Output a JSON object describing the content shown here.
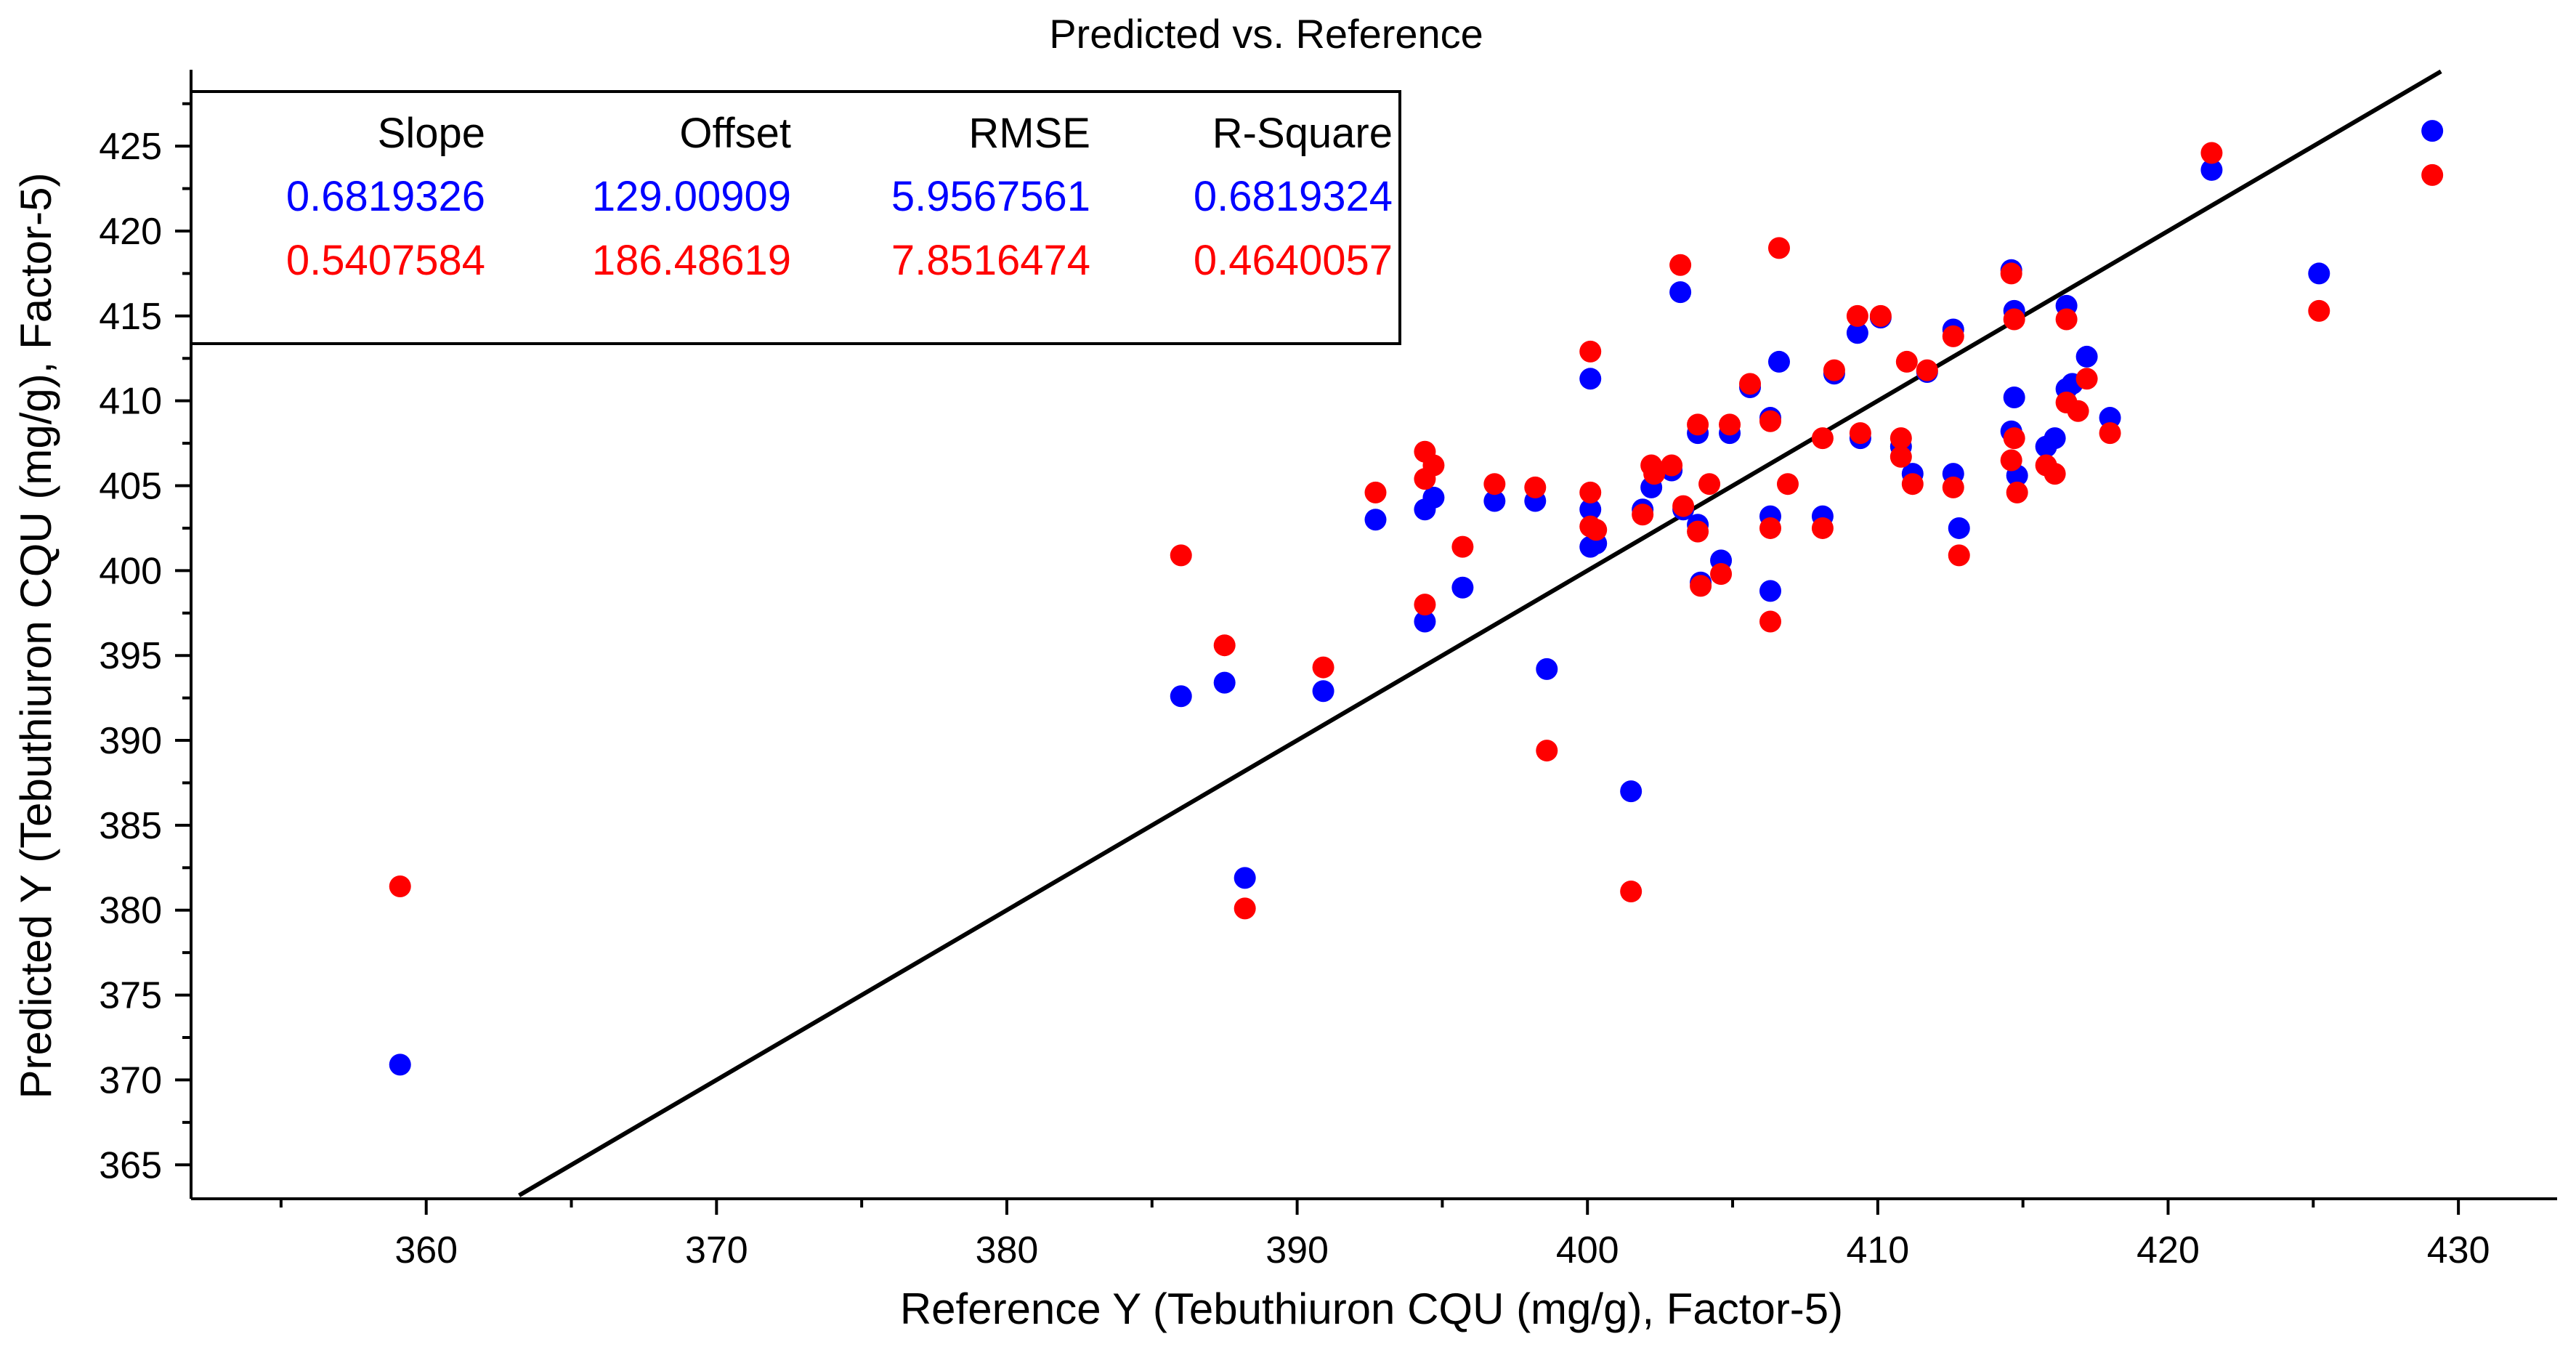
{
  "chart_data": {
    "type": "scatter",
    "title": "Predicted vs. Reference",
    "xlabel": "Reference Y (Tebuthiuron CQU (mg/g), Factor-5)",
    "ylabel": "Predicted Y (Tebuthiuron CQU (mg/g), Factor-5)",
    "xlim": [
      351.9,
      433.4
    ],
    "ylim": [
      363.0,
      429.5
    ],
    "x_ticks": [
      360,
      370,
      380,
      390,
      400,
      410,
      420,
      430
    ],
    "x_tick_labels": [
      "360",
      "370",
      "380",
      "390",
      "400",
      "410",
      "420",
      "430"
    ],
    "x_minor_ticks": [
      355,
      365,
      375,
      385,
      395,
      405,
      415,
      425
    ],
    "y_ticks": [
      365,
      370,
      375,
      380,
      385,
      390,
      395,
      400,
      405,
      410,
      415,
      420,
      425
    ],
    "y_tick_labels": [
      "365",
      "370",
      "375",
      "380",
      "385",
      "390",
      "395",
      "400",
      "405",
      "410",
      "415",
      "420",
      "425"
    ],
    "y_minor_ticks": [
      367.5,
      372.5,
      377.5,
      382.5,
      387.5,
      392.5,
      397.5,
      402.5,
      407.5,
      412.5,
      417.5,
      422.5,
      427.5
    ],
    "grid": false,
    "legend": "top-left",
    "stats": {
      "headers": [
        "Slope",
        "Offset",
        "RMSE",
        "R-Square"
      ],
      "rows": [
        {
          "name": "blue",
          "color": "#0000ff",
          "values": [
            "0.6819326",
            "129.00909",
            "5.9567561",
            "0.6819324"
          ]
        },
        {
          "name": "red",
          "color": "#ff0000",
          "values": [
            "0.5407584",
            "186.48619",
            "7.8516474",
            "0.4640057"
          ]
        }
      ]
    },
    "target_line": {
      "x": [
        363.2,
        429.4
      ],
      "y": [
        363.2,
        429.4
      ],
      "color": "#000000"
    },
    "series": [
      {
        "name": "blue",
        "color": "#0000ff",
        "points": [
          [
            359.1,
            370.9
          ],
          [
            386.0,
            392.6
          ],
          [
            387.5,
            393.4
          ],
          [
            388.2,
            381.9
          ],
          [
            390.9,
            392.9
          ],
          [
            392.7,
            403.0
          ],
          [
            394.4,
            403.6
          ],
          [
            394.4,
            397.0
          ],
          [
            394.7,
            404.3
          ],
          [
            395.7,
            399.0
          ],
          [
            396.8,
            404.1
          ],
          [
            398.2,
            404.1
          ],
          [
            398.6,
            394.2
          ],
          [
            400.1,
            411.3
          ],
          [
            400.1,
            403.6
          ],
          [
            400.1,
            401.4
          ],
          [
            400.3,
            401.6
          ],
          [
            401.5,
            387.0
          ],
          [
            401.9,
            403.6
          ],
          [
            402.2,
            404.9
          ],
          [
            402.9,
            405.9
          ],
          [
            403.2,
            416.4
          ],
          [
            403.3,
            403.6
          ],
          [
            403.8,
            408.1
          ],
          [
            403.8,
            402.7
          ],
          [
            403.9,
            399.3
          ],
          [
            404.6,
            400.6
          ],
          [
            404.9,
            408.1
          ],
          [
            405.6,
            410.8
          ],
          [
            406.3,
            409.0
          ],
          [
            406.3,
            403.2
          ],
          [
            406.3,
            398.8
          ],
          [
            406.6,
            412.3
          ],
          [
            408.1,
            403.2
          ],
          [
            408.5,
            411.6
          ],
          [
            409.3,
            414.0
          ],
          [
            409.4,
            407.8
          ],
          [
            410.1,
            414.9
          ],
          [
            410.8,
            407.3
          ],
          [
            411.2,
            405.7
          ],
          [
            411.7,
            411.7
          ],
          [
            412.6,
            414.2
          ],
          [
            412.6,
            405.7
          ],
          [
            412.8,
            402.5
          ],
          [
            414.6,
            417.7
          ],
          [
            414.6,
            408.2
          ],
          [
            414.7,
            415.3
          ],
          [
            414.7,
            410.2
          ],
          [
            414.8,
            405.6
          ],
          [
            415.8,
            407.3
          ],
          [
            416.1,
            407.8
          ],
          [
            416.5,
            415.6
          ],
          [
            416.5,
            410.7
          ],
          [
            416.7,
            411.0
          ],
          [
            417.2,
            412.6
          ],
          [
            418.0,
            409.0
          ],
          [
            421.5,
            423.6
          ],
          [
            425.2,
            417.5
          ],
          [
            429.1,
            425.9
          ]
        ]
      },
      {
        "name": "red",
        "color": "#ff0000",
        "points": [
          [
            359.1,
            381.4
          ],
          [
            386.0,
            400.9
          ],
          [
            387.5,
            395.6
          ],
          [
            388.2,
            380.1
          ],
          [
            390.9,
            394.3
          ],
          [
            392.7,
            404.6
          ],
          [
            394.4,
            407.0
          ],
          [
            394.4,
            405.4
          ],
          [
            394.4,
            398.0
          ],
          [
            394.7,
            406.2
          ],
          [
            395.7,
            401.4
          ],
          [
            396.8,
            405.1
          ],
          [
            398.2,
            404.9
          ],
          [
            398.6,
            389.4
          ],
          [
            400.1,
            412.9
          ],
          [
            400.1,
            404.6
          ],
          [
            400.1,
            402.6
          ],
          [
            400.3,
            402.4
          ],
          [
            401.5,
            381.1
          ],
          [
            401.9,
            403.3
          ],
          [
            402.2,
            406.2
          ],
          [
            402.3,
            405.7
          ],
          [
            402.9,
            406.2
          ],
          [
            403.2,
            418.0
          ],
          [
            403.3,
            403.8
          ],
          [
            403.8,
            408.6
          ],
          [
            403.8,
            402.3
          ],
          [
            403.9,
            399.1
          ],
          [
            404.2,
            405.1
          ],
          [
            404.6,
            399.8
          ],
          [
            404.9,
            408.6
          ],
          [
            405.6,
            411.0
          ],
          [
            406.3,
            408.8
          ],
          [
            406.3,
            402.5
          ],
          [
            406.3,
            397.0
          ],
          [
            406.6,
            419.0
          ],
          [
            406.9,
            405.1
          ],
          [
            408.1,
            407.8
          ],
          [
            408.1,
            402.5
          ],
          [
            408.5,
            411.8
          ],
          [
            409.3,
            415.0
          ],
          [
            409.4,
            408.1
          ],
          [
            410.1,
            415.0
          ],
          [
            410.8,
            407.8
          ],
          [
            410.8,
            406.7
          ],
          [
            411.0,
            412.3
          ],
          [
            411.2,
            405.1
          ],
          [
            411.7,
            411.8
          ],
          [
            412.6,
            413.8
          ],
          [
            412.6,
            404.9
          ],
          [
            412.8,
            400.9
          ],
          [
            414.6,
            417.5
          ],
          [
            414.6,
            406.5
          ],
          [
            414.7,
            414.8
          ],
          [
            414.7,
            407.8
          ],
          [
            414.8,
            404.6
          ],
          [
            415.8,
            406.2
          ],
          [
            416.1,
            405.7
          ],
          [
            416.5,
            414.8
          ],
          [
            416.5,
            409.9
          ],
          [
            416.9,
            409.4
          ],
          [
            417.2,
            411.3
          ],
          [
            418.0,
            408.1
          ],
          [
            421.5,
            424.6
          ],
          [
            425.2,
            415.3
          ],
          [
            429.1,
            423.3
          ]
        ]
      }
    ]
  }
}
